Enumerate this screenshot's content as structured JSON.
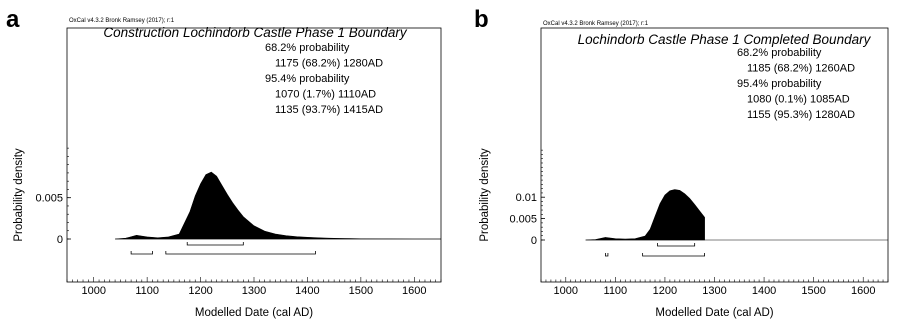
{
  "chart_data": [
    {
      "type": "area",
      "panel_letter": "a",
      "credit": "OxCal v4.3.2 Bronk Ramsey (2017); r:1",
      "title": "Construction Lochindorb Castle Phase 1 Boundary",
      "prob_lines": [
        "68.2% probability",
        "1175 (68.2%) 1280AD",
        "95.4% probability",
        "1070 (1.7%) 1110AD",
        "1135 (93.7%) 1415AD"
      ],
      "xlabel": "Modelled Date (cal AD)",
      "ylabel": "Probability density",
      "xlim": [
        950,
        1650
      ],
      "ylim": [
        0,
        0.0115
      ],
      "xticks": [
        1000,
        1100,
        1200,
        1300,
        1400,
        1500,
        1600
      ],
      "yticks": [
        0,
        0.005
      ],
      "ytick_labels": [
        "0",
        "0.005"
      ],
      "density": {
        "x": [
          1040,
          1060,
          1080,
          1100,
          1120,
          1140,
          1160,
          1180,
          1190,
          1200,
          1210,
          1220,
          1230,
          1240,
          1250,
          1260,
          1270,
          1280,
          1300,
          1320,
          1340,
          1360,
          1380,
          1400,
          1420,
          1440,
          1460,
          1480,
          1500,
          1550,
          1600,
          1650
        ],
        "y": [
          0,
          0.0001,
          0.00045,
          0.00025,
          0.00015,
          0.00025,
          0.0006,
          0.0033,
          0.0052,
          0.0067,
          0.0078,
          0.0081,
          0.0076,
          0.0065,
          0.0054,
          0.0044,
          0.0035,
          0.0027,
          0.0016,
          0.00095,
          0.0006,
          0.0004,
          0.00028,
          0.0002,
          0.00014,
          0.0001,
          7e-05,
          5e-05,
          3e-05,
          1e-05,
          0,
          0
        ]
      },
      "ranges_68": [
        [
          1175,
          1280
        ]
      ],
      "ranges_95": [
        [
          1070,
          1110
        ],
        [
          1135,
          1415
        ]
      ]
    },
    {
      "type": "area",
      "panel_letter": "b",
      "credit": "OxCal v4.3.2 Bronk Ramsey (2017); r:1",
      "title": "Lochindorb Castle Phase 1 Completed Boundary",
      "prob_lines": [
        "68.2% probability",
        "1185 (68.2%) 1260AD",
        "95.4% probability",
        "1080 (0.1%) 1085AD",
        "1155 (95.3%) 1280AD"
      ],
      "xlabel": "Modelled Date (cal AD)",
      "ylabel": "Probability density",
      "xlim": [
        950,
        1650
      ],
      "ylim": [
        0,
        0.0215
      ],
      "xticks": [
        1000,
        1100,
        1200,
        1300,
        1400,
        1500,
        1600
      ],
      "yticks": [
        0,
        0.005,
        0.01
      ],
      "ytick_labels": [
        "0",
        "0.005",
        "0.01"
      ],
      "density": {
        "x": [
          1040,
          1060,
          1080,
          1100,
          1120,
          1140,
          1160,
          1170,
          1180,
          1190,
          1200,
          1210,
          1220,
          1230,
          1240,
          1250,
          1260,
          1270,
          1280,
          1280
        ],
        "y": [
          0,
          0.0001,
          0.0006,
          0.0003,
          0.0002,
          0.0003,
          0.0009,
          0.0025,
          0.0055,
          0.0085,
          0.0105,
          0.0115,
          0.0118,
          0.0116,
          0.0108,
          0.0097,
          0.0083,
          0.0068,
          0.0053,
          0
        ]
      },
      "ranges_68": [
        [
          1185,
          1260
        ]
      ],
      "ranges_95": [
        [
          1080,
          1085
        ],
        [
          1155,
          1280
        ]
      ]
    }
  ]
}
